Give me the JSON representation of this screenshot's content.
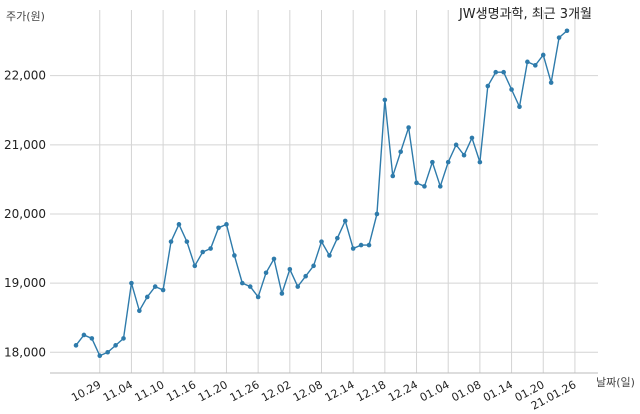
{
  "chart_data": {
    "type": "line",
    "title": "JW생명과학, 최근 3개월",
    "ylabel": "주가(원)",
    "xlabel": "날짜(일)",
    "ylim": [
      17700,
      22950
    ],
    "yticks": [
      18000,
      19000,
      20000,
      21000,
      22000
    ],
    "ytick_labels": [
      "18,000",
      "19,000",
      "20,000",
      "21,000",
      "22,000"
    ],
    "x_tick_labels": [
      "10.29",
      "11.04",
      "11.10",
      "11.16",
      "11.20",
      "11.26",
      "12.02",
      "12.08",
      "12.14",
      "12.18",
      "12.24",
      "01.04",
      "01.08",
      "01.14",
      "01.20",
      "21.01.26"
    ],
    "x_tick_index": [
      3,
      7,
      11,
      15,
      19,
      23,
      27,
      31,
      35,
      39,
      43,
      47,
      51,
      55,
      59,
      63
    ],
    "grid": true,
    "series_color": "#2e7bab",
    "values": [
      18100,
      18250,
      18200,
      17950,
      18000,
      18100,
      18200,
      19000,
      18600,
      18800,
      18950,
      18900,
      19600,
      19850,
      19600,
      19250,
      19450,
      19500,
      19800,
      19850,
      19400,
      19000,
      18950,
      18800,
      19150,
      19350,
      18850,
      19200,
      18950,
      19100,
      19250,
      19600,
      19400,
      19650,
      19900,
      19500,
      19550,
      19550,
      20000,
      21650,
      20550,
      20900,
      21250,
      20450,
      20400,
      20750,
      20400,
      20750,
      21000,
      20850,
      21100,
      20750,
      21850,
      22050,
      22050,
      21800,
      21550,
      22200,
      22150,
      22300,
      21900,
      22550,
      22650
    ]
  }
}
